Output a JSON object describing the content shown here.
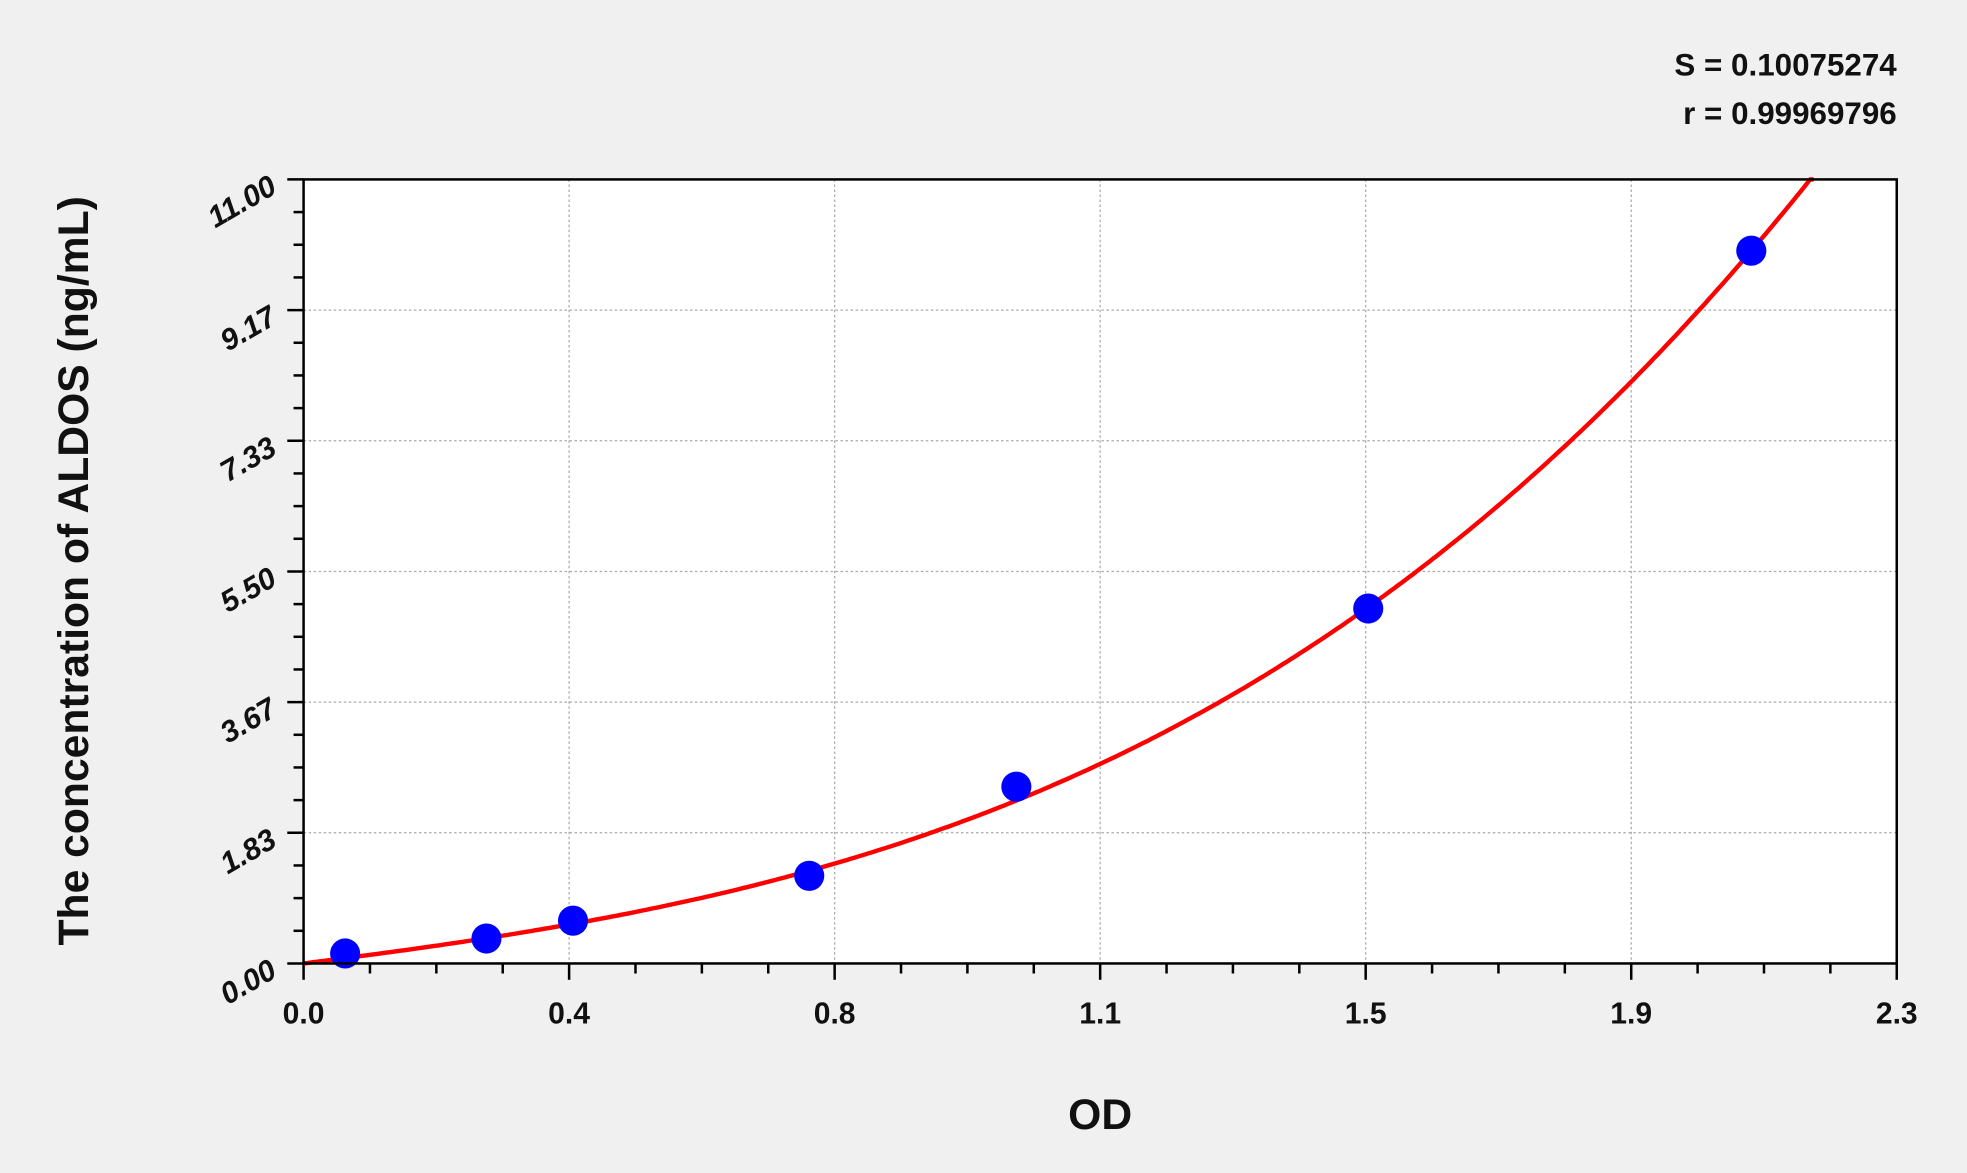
{
  "chart_data": {
    "type": "scatter",
    "xlabel": "OD",
    "ylabel": "The concentration of ALDOS (ng/mL)",
    "xlim": [
      0,
      2.3
    ],
    "ylim": [
      0,
      11
    ],
    "x_tick_labels": [
      "0.0",
      "0.4",
      "0.8",
      "1.1",
      "1.5",
      "1.9",
      "2.3"
    ],
    "y_tick_labels": [
      "0.00",
      "1.83",
      "3.67",
      "5.50",
      "7.33",
      "9.17",
      "11.00"
    ],
    "grid": true,
    "annotations": [
      "S = 0.10075274",
      "r = 0.99969796"
    ],
    "points": {
      "x": [
        0.06,
        0.264,
        0.389,
        0.73,
        1.029,
        1.537,
        2.09
      ],
      "y": [
        0.14,
        0.35,
        0.6,
        1.23,
        2.48,
        4.98,
        10.0
      ],
      "color": "#0000ff"
    },
    "fit_curve": {
      "model": "cubic",
      "coefficients": [
        0,
        1.229,
        0.2495,
        0.6945
      ],
      "color": "#ff0000"
    }
  }
}
